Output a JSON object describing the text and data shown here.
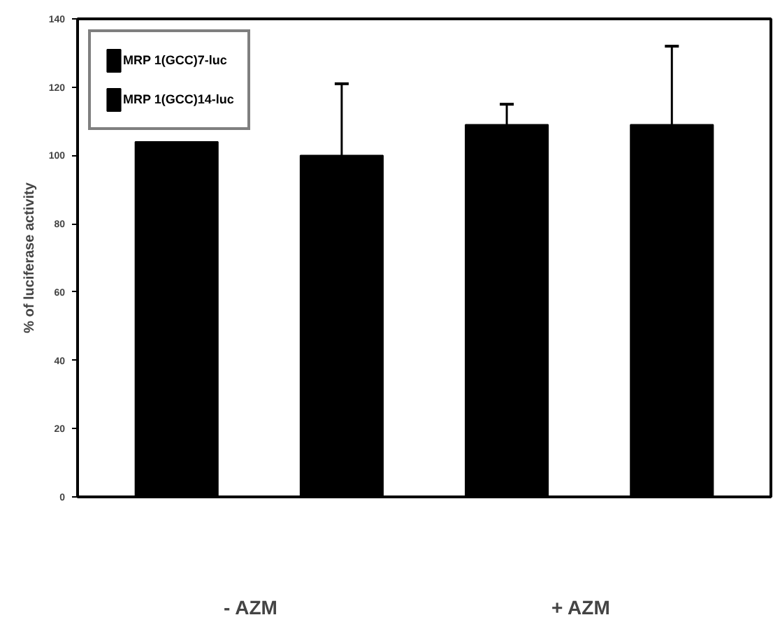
{
  "chart_data": {
    "type": "bar",
    "ylabel": "% of luciferase activity",
    "categories": [
      "- AZM",
      "+ AZM"
    ],
    "series": [
      {
        "name": "MRP 1(GCC)7-luc",
        "color": "#000000",
        "values": [
          104,
          109
        ],
        "errors": [
          null,
          6
        ]
      },
      {
        "name": "MRP 1(GCC)14-luc",
        "color": "#000000",
        "values": [
          100,
          109
        ],
        "errors": [
          21,
          23
        ]
      }
    ],
    "ylim": [
      0,
      140
    ],
    "yticks": [
      0,
      20,
      40,
      60,
      80,
      100,
      120,
      140
    ],
    "grid": false,
    "legend": "top left"
  }
}
